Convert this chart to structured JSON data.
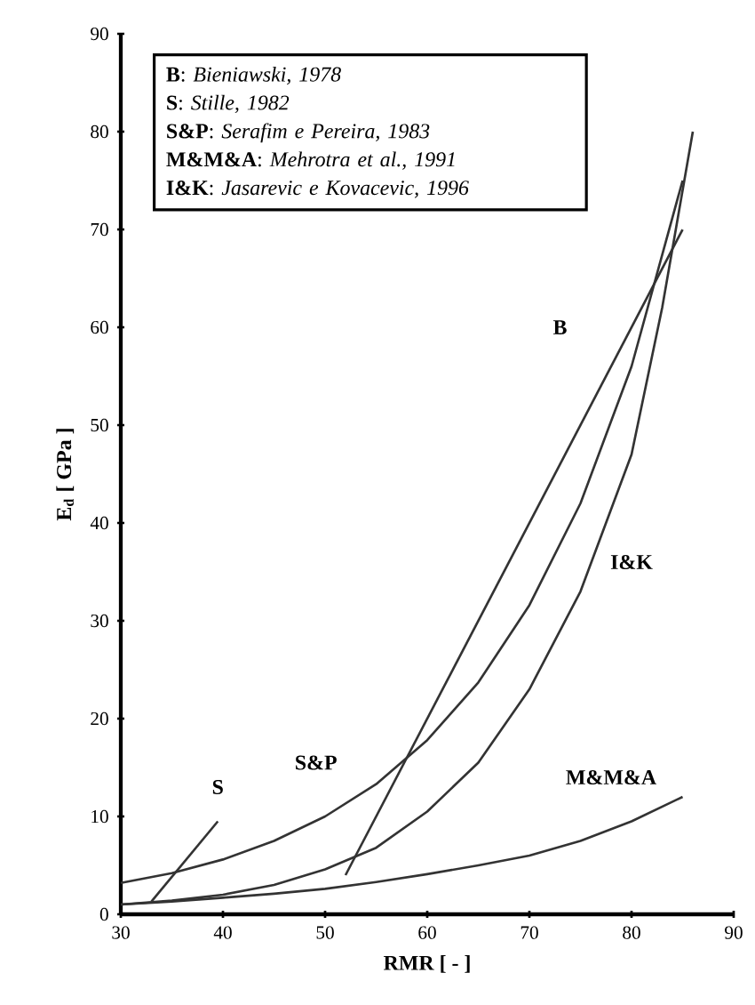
{
  "chart_data": {
    "type": "line",
    "xlabel": "RMR [ - ]",
    "ylabel": "E$_{d}$ [ GPa ]",
    "xlim": [
      30,
      90
    ],
    "ylim": [
      0,
      90
    ],
    "xticks": [
      30,
      40,
      50,
      60,
      70,
      80,
      90
    ],
    "yticks": [
      0,
      10,
      20,
      30,
      40,
      50,
      60,
      70,
      80,
      90
    ],
    "grid": false,
    "legend": false,
    "marker": "none",
    "line_style": "solid",
    "annotations": [
      "**B**: *Bieniawski, 1978*",
      "**S**: *Stille, 1982*",
      "**S&P**: *Serafim e Pereira, 1983*",
      "**M&M&A**: *Mehrotra et al., 1991*",
      "**I&K**: *Jasarevic e Kovacevic, 1996*"
    ],
    "series": [
      {
        "name": "B",
        "color": "#333333",
        "x": [
          52,
          85
        ],
        "values": [
          4,
          70
        ]
      },
      {
        "name": "S",
        "color": "#333333",
        "x": [
          33,
          39.5
        ],
        "values": [
          1.3,
          9.5
        ]
      },
      {
        "name": "S&P",
        "color": "#333333",
        "x": [
          30,
          35,
          40,
          45,
          50,
          55,
          60,
          65,
          70,
          75,
          80,
          85
        ],
        "values": [
          3.2,
          4.2,
          5.6,
          7.5,
          10,
          13.3,
          17.8,
          23.7,
          31.6,
          42,
          56,
          75
        ]
      },
      {
        "name": "M&M&A",
        "color": "#333333",
        "x": [
          30,
          35,
          40,
          45,
          50,
          55,
          60,
          65,
          70,
          75,
          80,
          85
        ],
        "values": [
          1,
          1.3,
          1.7,
          2.1,
          2.6,
          3.3,
          4.1,
          5,
          6,
          7.5,
          9.5,
          12
        ]
      },
      {
        "name": "I&K",
        "color": "#333333",
        "x": [
          30,
          35,
          40,
          45,
          50,
          55,
          60,
          65,
          70,
          75,
          80,
          83,
          86
        ],
        "values": [
          1,
          1.4,
          2,
          3,
          4.6,
          6.8,
          10.5,
          15.5,
          23,
          33,
          47,
          62,
          80
        ]
      }
    ]
  }
}
